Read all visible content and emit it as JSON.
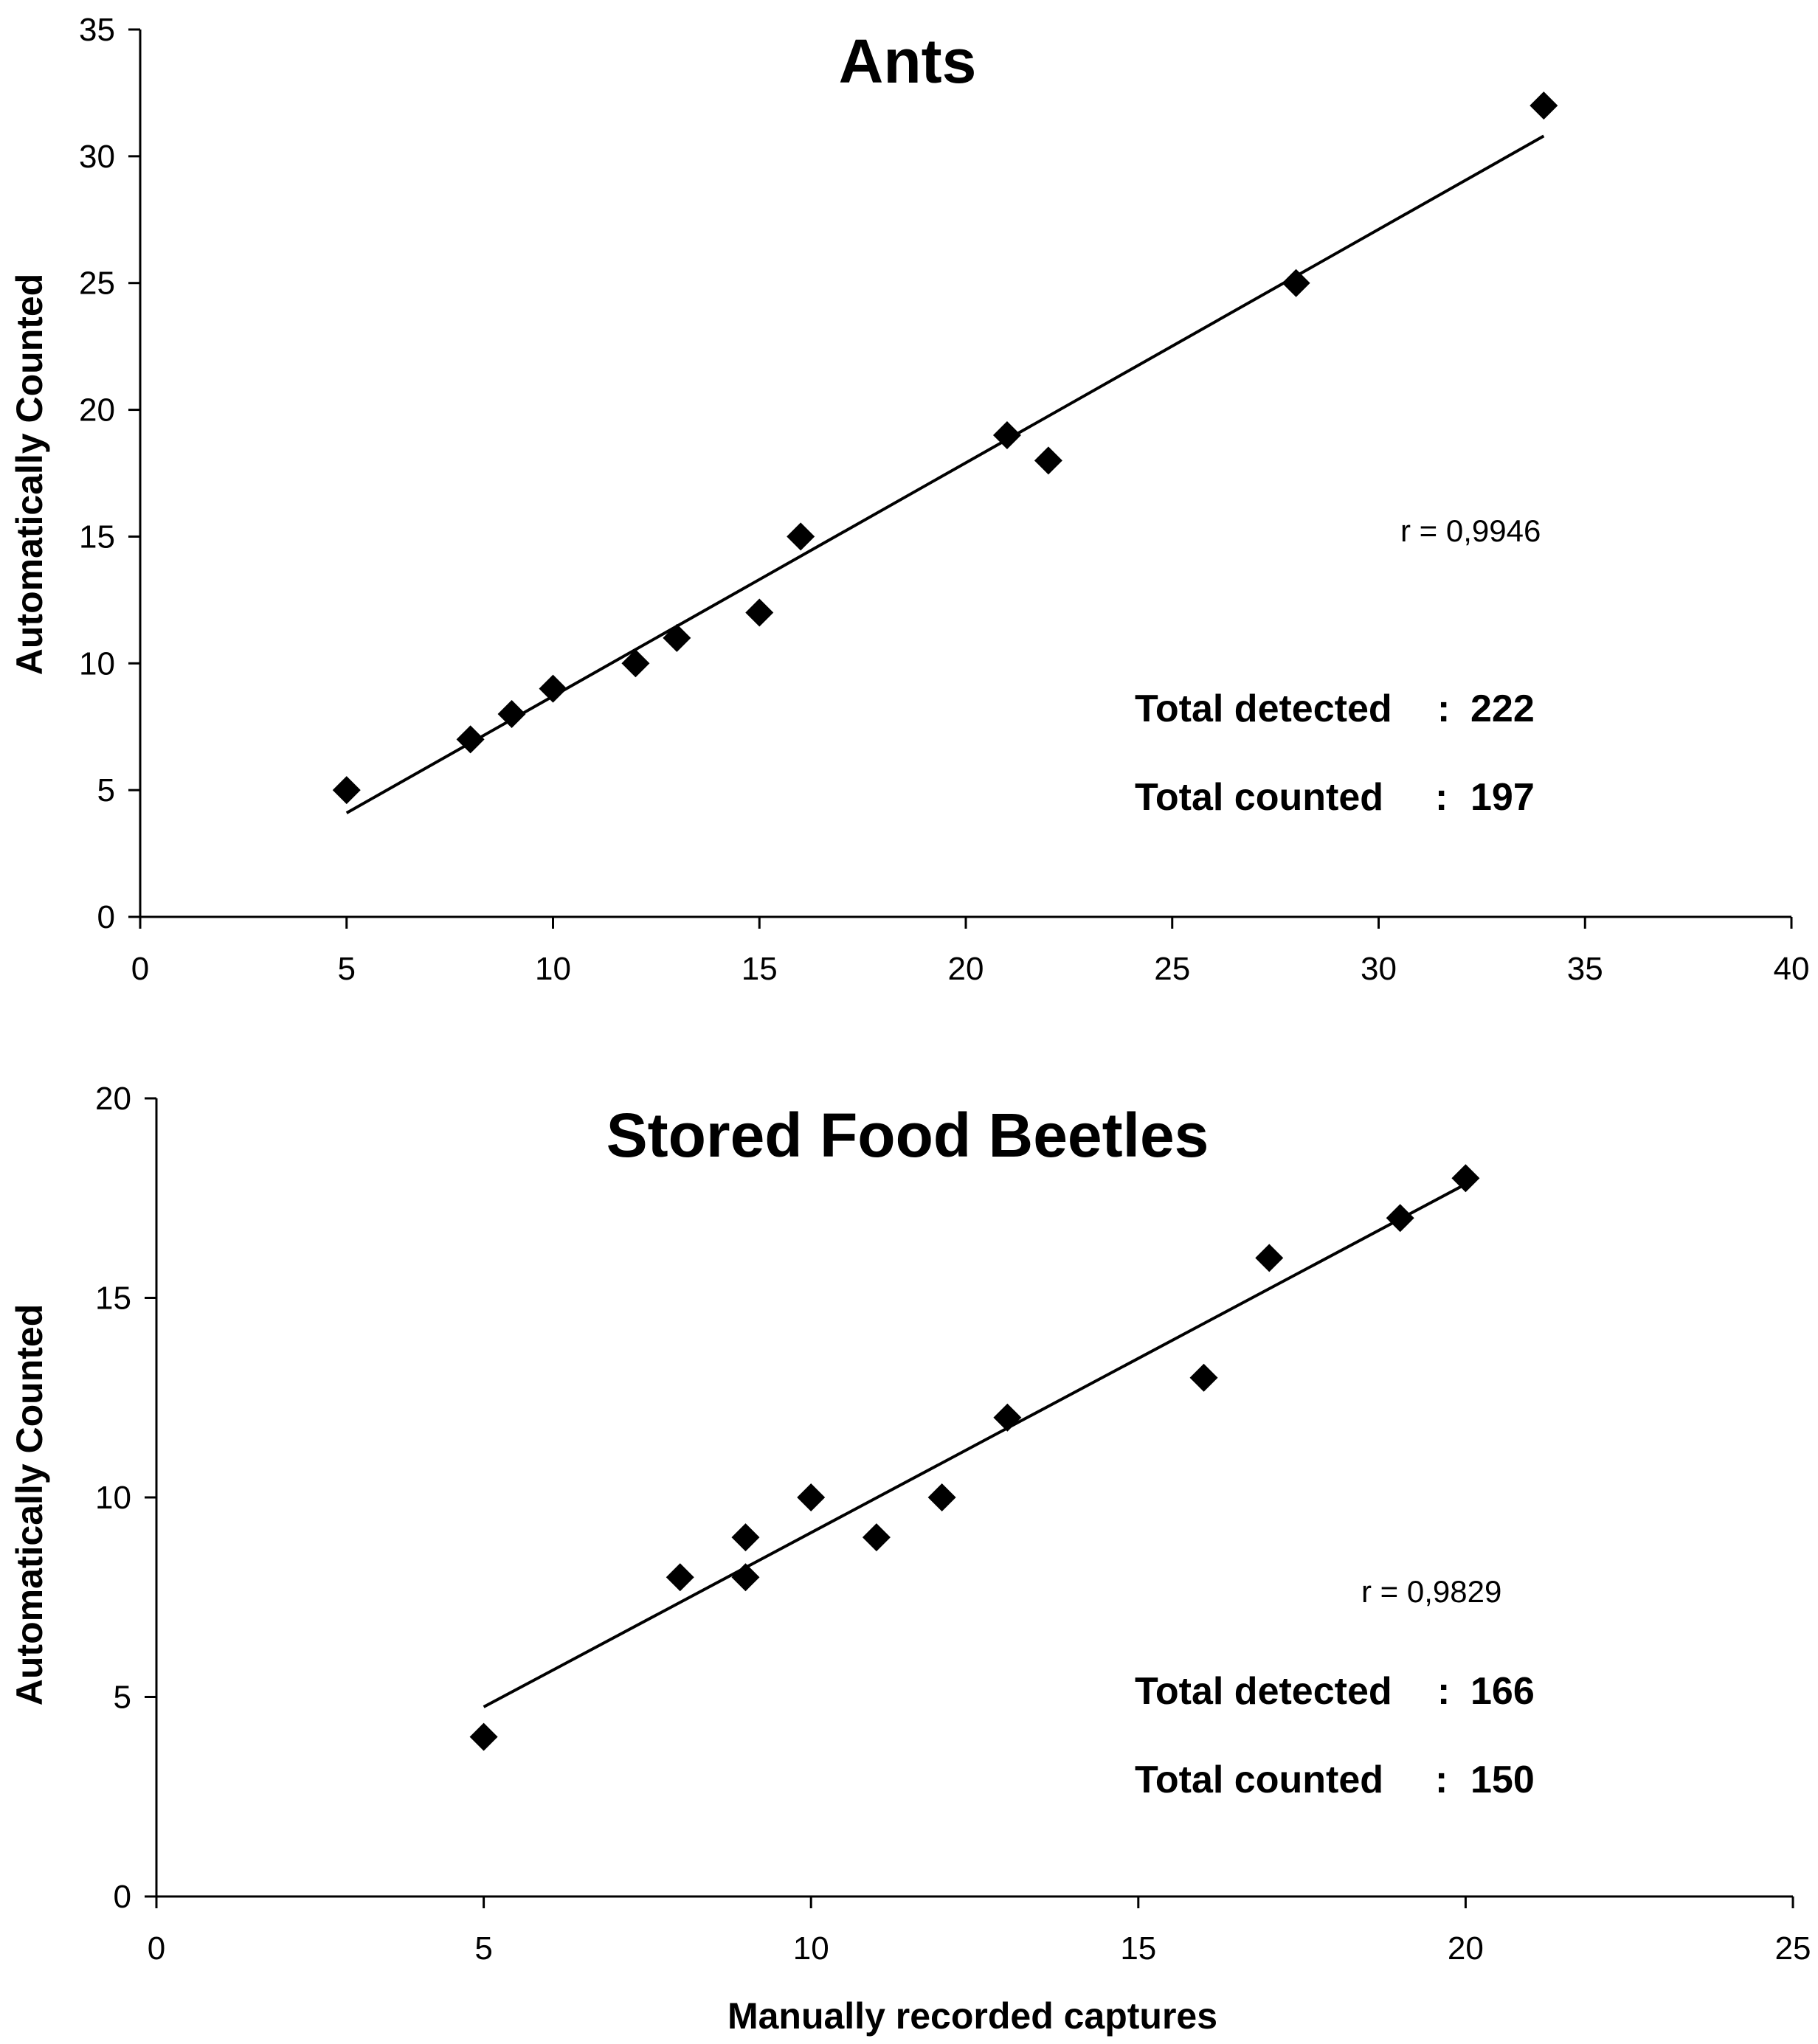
{
  "chart_data": [
    {
      "type": "scatter",
      "title": "Ants",
      "xlabel": "",
      "ylabel": "Automatically Counted",
      "xlim": [
        0,
        40
      ],
      "ylim": [
        0,
        35
      ],
      "xticks": [
        0,
        5,
        10,
        15,
        20,
        25,
        30,
        35,
        40
      ],
      "yticks": [
        0,
        5,
        10,
        15,
        20,
        25,
        30,
        35
      ],
      "grid": false,
      "x": [
        5,
        8,
        9,
        10,
        12,
        13,
        15,
        16,
        21,
        22,
        28,
        34
      ],
      "y": [
        5,
        7,
        8,
        9,
        10,
        11,
        12,
        15,
        19,
        18,
        25,
        32
      ],
      "trendline": {
        "x": [
          5,
          34
        ],
        "y": [
          4.1,
          30.8
        ]
      },
      "r_text": "r = 0,9946",
      "totals": [
        {
          "label": "Total detected",
          "separator": ":",
          "value": "222"
        },
        {
          "label": "Total counted",
          "separator": ":",
          "value": "197"
        }
      ]
    },
    {
      "type": "scatter",
      "title": "Stored Food Beetles",
      "xlabel": "Manually recorded captures",
      "ylabel": "Automatically Counted",
      "xlim": [
        0,
        25
      ],
      "ylim": [
        0,
        20
      ],
      "xticks": [
        0,
        5,
        10,
        15,
        20,
        25
      ],
      "yticks": [
        0,
        5,
        10,
        15,
        20
      ],
      "grid": false,
      "x": [
        5,
        8,
        9,
        9,
        10,
        11,
        12,
        13,
        16,
        17,
        19,
        20
      ],
      "y": [
        4,
        8,
        9,
        8,
        10,
        9,
        10,
        12,
        13,
        16,
        17,
        18
      ],
      "trendline": {
        "x": [
          5,
          20
        ],
        "y": [
          4.75,
          17.85
        ]
      },
      "r_text": "r = 0,9829",
      "totals": [
        {
          "label": "Total detected",
          "separator": ":",
          "value": "166"
        },
        {
          "label": "Total counted",
          "separator": ":",
          "value": "150"
        }
      ]
    }
  ]
}
